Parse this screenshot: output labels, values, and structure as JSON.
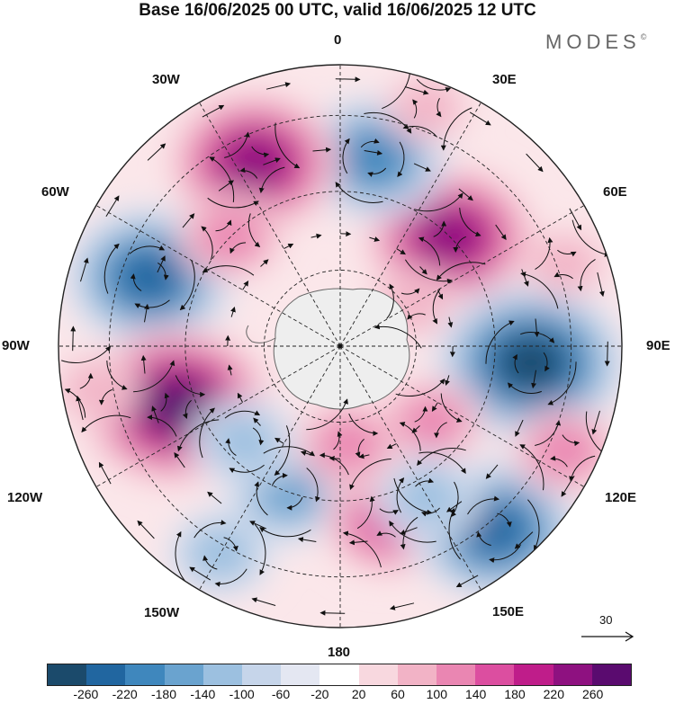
{
  "title": "Base 16/06/2025 00 UTC, valid 16/06/2025 12 UTC",
  "brand": {
    "name": "MODES",
    "mark": "©"
  },
  "lon_labels": {
    "l0": "0",
    "l30e": "30E",
    "l60e": "60E",
    "l90e": "90E",
    "l120e": "120E",
    "l150e": "150E",
    "l180": "180",
    "l150w": "150W",
    "l120w": "120W",
    "l90w": "90W",
    "l60w": "60W",
    "l30w": "30W"
  },
  "reference_vector": {
    "value": "30"
  },
  "legend": {
    "ticks": [
      "-260",
      "-220",
      "-180",
      "-140",
      "-100",
      "-60",
      "-20",
      "20",
      "60",
      "100",
      "140",
      "180",
      "220",
      "260"
    ],
    "colors": [
      "#1b4a6b",
      "#2166a0",
      "#3f87bd",
      "#6aa3cf",
      "#9cc0e0",
      "#c6d5ea",
      "#e4e7f2",
      "#ffffff",
      "#f8d8df",
      "#f2b3c6",
      "#ea86b2",
      "#dc4ea0",
      "#bf1d8a",
      "#8e1180",
      "#5a0b6f"
    ]
  },
  "map": {
    "projection": "south polar stereographic",
    "field_centers_clockwise_from_0": "anomaly blobs",
    "features": [
      {
        "lon": 45,
        "lat_r": 0.55,
        "value": 230
      },
      {
        "lon": 10,
        "lat_r": 0.68,
        "value": -200
      },
      {
        "lon": -25,
        "lat_r": 0.72,
        "value": 250
      },
      {
        "lon": -70,
        "lat_r": 0.72,
        "value": -220
      },
      {
        "lon": -110,
        "lat_r": 0.62,
        "value": 260
      },
      {
        "lon": -160,
        "lat_r": 0.55,
        "value": -140
      },
      {
        "lon": 165,
        "lat_r": 0.65,
        "value": 160
      },
      {
        "lon": 140,
        "lat_r": 0.85,
        "value": -220
      },
      {
        "lon": 95,
        "lat_r": 0.68,
        "value": -260
      },
      {
        "lon": 130,
        "lat_r": 0.42,
        "value": 120
      },
      {
        "lon": 150,
        "lat_r": 0.62,
        "value": -100
      },
      {
        "lon": 115,
        "lat_r": 0.88,
        "value": 120
      },
      {
        "lon": -135,
        "lat_r": 0.48,
        "value": -100
      },
      {
        "lon": 175,
        "lat_r": 0.35,
        "value": 100
      },
      {
        "lon": -45,
        "lat_r": 0.55,
        "value": 120
      },
      {
        "lon": 70,
        "lat_r": 0.85,
        "value": 80
      },
      {
        "lon": -150,
        "lat_r": 0.85,
        "value": -120
      },
      {
        "lon": 20,
        "lat_r": 0.9,
        "value": 80
      },
      {
        "lon": -100,
        "lat_r": 0.88,
        "value": 60
      },
      {
        "lon": 60,
        "lat_r": 0.3,
        "value": 60
      }
    ]
  }
}
